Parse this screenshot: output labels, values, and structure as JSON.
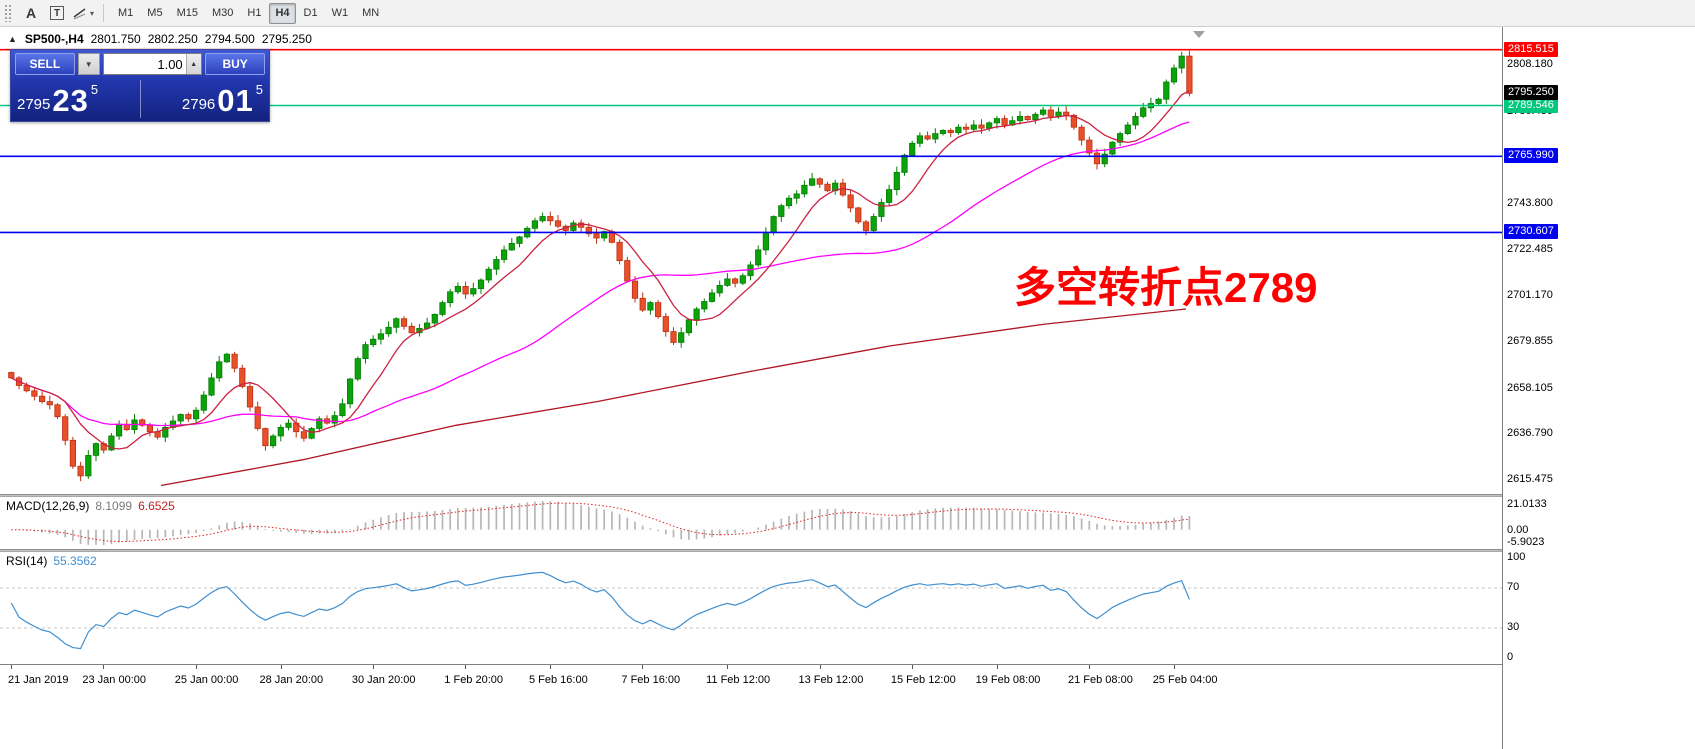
{
  "toolbar": {
    "tools": [
      {
        "name": "toolbar-grip"
      },
      {
        "label": "A",
        "name": "text-tool"
      },
      {
        "label": "T",
        "name": "label-tool"
      },
      {
        "name": "shapes-tool"
      }
    ],
    "timeframes": [
      {
        "label": "M1"
      },
      {
        "label": "M5"
      },
      {
        "label": "M15"
      },
      {
        "label": "M30"
      },
      {
        "label": "H1"
      },
      {
        "label": "H4",
        "active": true
      },
      {
        "label": "D1"
      },
      {
        "label": "W1"
      },
      {
        "label": "MN"
      }
    ]
  },
  "chart": {
    "header": {
      "symbol": "SP500-,H4",
      "open": "2801.750",
      "high": "2802.250",
      "low": "2794.500",
      "close": "2795.250"
    },
    "trade_panel": {
      "sell_label": "SELL",
      "buy_label": "BUY",
      "volume": "1.00",
      "sell_price_main": "2795",
      "sell_price_big": "23",
      "sell_price_sup": "5",
      "buy_price_main": "2796",
      "buy_price_big": "01",
      "buy_price_sup": "5"
    },
    "annotation": {
      "text": "多空转折点2789",
      "color": "#ff0000"
    },
    "axis": {
      "price_top": 2820,
      "price_bottom": 2610
    },
    "levels": [
      {
        "label": "2815.515",
        "price": 2815.515,
        "color": "#ff0000"
      },
      {
        "label": "2789.546",
        "price": 2789.546,
        "color": "#00c87d"
      },
      {
        "label": "2765.990",
        "price": 2765.99,
        "color": "#0000f0"
      },
      {
        "label": "2730.607",
        "price": 2730.607,
        "color": "#0000f0"
      }
    ],
    "current_price": {
      "label": "2795.250",
      "price": 2795.25,
      "color": "#000000"
    },
    "scale_ticks": [
      "2808.180",
      "2786.430",
      "2743.800",
      "2722.485",
      "2701.170",
      "2679.855",
      "2658.105",
      "2636.790",
      "2615.475"
    ],
    "time_labels": [
      {
        "text": "21 Jan 2019",
        "bar": 0
      },
      {
        "text": "23 Jan 00:00",
        "bar": 12
      },
      {
        "text": "25 Jan 00:00",
        "bar": 24
      },
      {
        "text": "28 Jan 20:00",
        "bar": 35
      },
      {
        "text": "30 Jan 20:00",
        "bar": 47
      },
      {
        "text": "1 Feb 20:00",
        "bar": 59
      },
      {
        "text": "5 Feb 16:00",
        "bar": 70
      },
      {
        "text": "7 Feb 16:00",
        "bar": 82
      },
      {
        "text": "11 Feb 12:00",
        "bar": 93
      },
      {
        "text": "13 Feb 12:00",
        "bar": 105
      },
      {
        "text": "15 Feb 12:00",
        "bar": 117
      },
      {
        "text": "19 Feb 08:00",
        "bar": 128
      },
      {
        "text": "21 Feb 08:00",
        "bar": 140
      },
      {
        "text": "25 Feb 04:00",
        "bar": 151
      }
    ]
  },
  "macd": {
    "title": "MACD(12,26,9)",
    "value_main": "8.1099",
    "value_signal": "6.6525",
    "scale": [
      "21.0133",
      "0.00",
      "-5.9023"
    ]
  },
  "rsi": {
    "title": "RSI(14)",
    "value": "55.3562",
    "scale": [
      "100",
      "70",
      "30",
      "0"
    ],
    "levels": [
      70,
      30
    ]
  },
  "chart_data": {
    "type": "candlestick",
    "symbol": "SP500-",
    "period": "H4",
    "title": "SP500- H4 with MACD(12,26,9) and RSI(14)",
    "price_axis_range": [
      2610,
      2820
    ],
    "ohlc_last": {
      "open": 2801.75,
      "high": 2802.25,
      "low": 2794.5,
      "close": 2795.25
    },
    "horizontal_levels": [
      2815.515,
      2789.546,
      2765.99,
      2730.607
    ],
    "candles": {
      "first_open": 2665.5,
      "closes": [
        2663,
        2659.5,
        2657,
        2654.5,
        2652,
        2650.5,
        2645,
        2634,
        2622,
        2617.5,
        2627,
        2632.5,
        2629.5,
        2636,
        2641.5,
        2639,
        2643.5,
        2641,
        2638,
        2635.5,
        2640,
        2643,
        2646,
        2644,
        2648,
        2655,
        2663,
        2670.5,
        2674,
        2667.5,
        2659,
        2649.5,
        2639.5,
        2631.5,
        2636,
        2640,
        2642,
        2638,
        2635,
        2639.5,
        2644,
        2642,
        2645.5,
        2651,
        2662.5,
        2672,
        2678.5,
        2681,
        2683.5,
        2686.5,
        2690.5,
        2687,
        2684,
        2686,
        2688.5,
        2692.5,
        2698,
        2703,
        2705.5,
        2702,
        2704.5,
        2708.5,
        2713.5,
        2718,
        2722.5,
        2725.5,
        2728.5,
        2732.5,
        2736,
        2738,
        2736,
        2733.5,
        2731.5,
        2735,
        2733,
        2730,
        2728,
        2731,
        2726,
        2717.5,
        2708,
        2700,
        2694.5,
        2698,
        2691.5,
        2684.5,
        2679.5,
        2684,
        2690,
        2695,
        2698.5,
        2702.5,
        2706,
        2709,
        2707,
        2710.5,
        2715.5,
        2722.5,
        2730.5,
        2738,
        2743,
        2746.5,
        2748.5,
        2752.5,
        2755.5,
        2753,
        2750,
        2753.5,
        2748,
        2742,
        2735.5,
        2731.5,
        2738,
        2744.5,
        2750.5,
        2758.5,
        2766.5,
        2772,
        2775.5,
        2774,
        2776.5,
        2778,
        2777,
        2779.5,
        2778.5,
        2780.5,
        2779,
        2781.5,
        2783.5,
        2780.5,
        2782.5,
        2784.5,
        2783,
        2785.5,
        2787.5,
        2784.5,
        2786.5,
        2785,
        2779.5,
        2773.5,
        2767.5,
        2762.5,
        2767,
        2772.5,
        2776.5,
        2780.5,
        2784.5,
        2788.5,
        2790.5,
        2792.5,
        2800.5,
        2807,
        2812.5,
        2795.25
      ]
    },
    "moving_averages": {
      "fast_red_period": 8,
      "magenta_period": 38,
      "slow_red_points": [
        [
          0.13,
          2613
        ],
        [
          0.25,
          2625
        ],
        [
          0.38,
          2641
        ],
        [
          0.5,
          2652
        ],
        [
          0.63,
          2666
        ],
        [
          0.75,
          2678
        ],
        [
          0.88,
          2688
        ],
        [
          1.0,
          2695
        ]
      ]
    },
    "macd_display": {
      "macd": 8.1099,
      "signal": 6.6525,
      "scale_max": 21.0133,
      "scale_min": -5.9023
    },
    "rsi_display": 55.3562
  }
}
